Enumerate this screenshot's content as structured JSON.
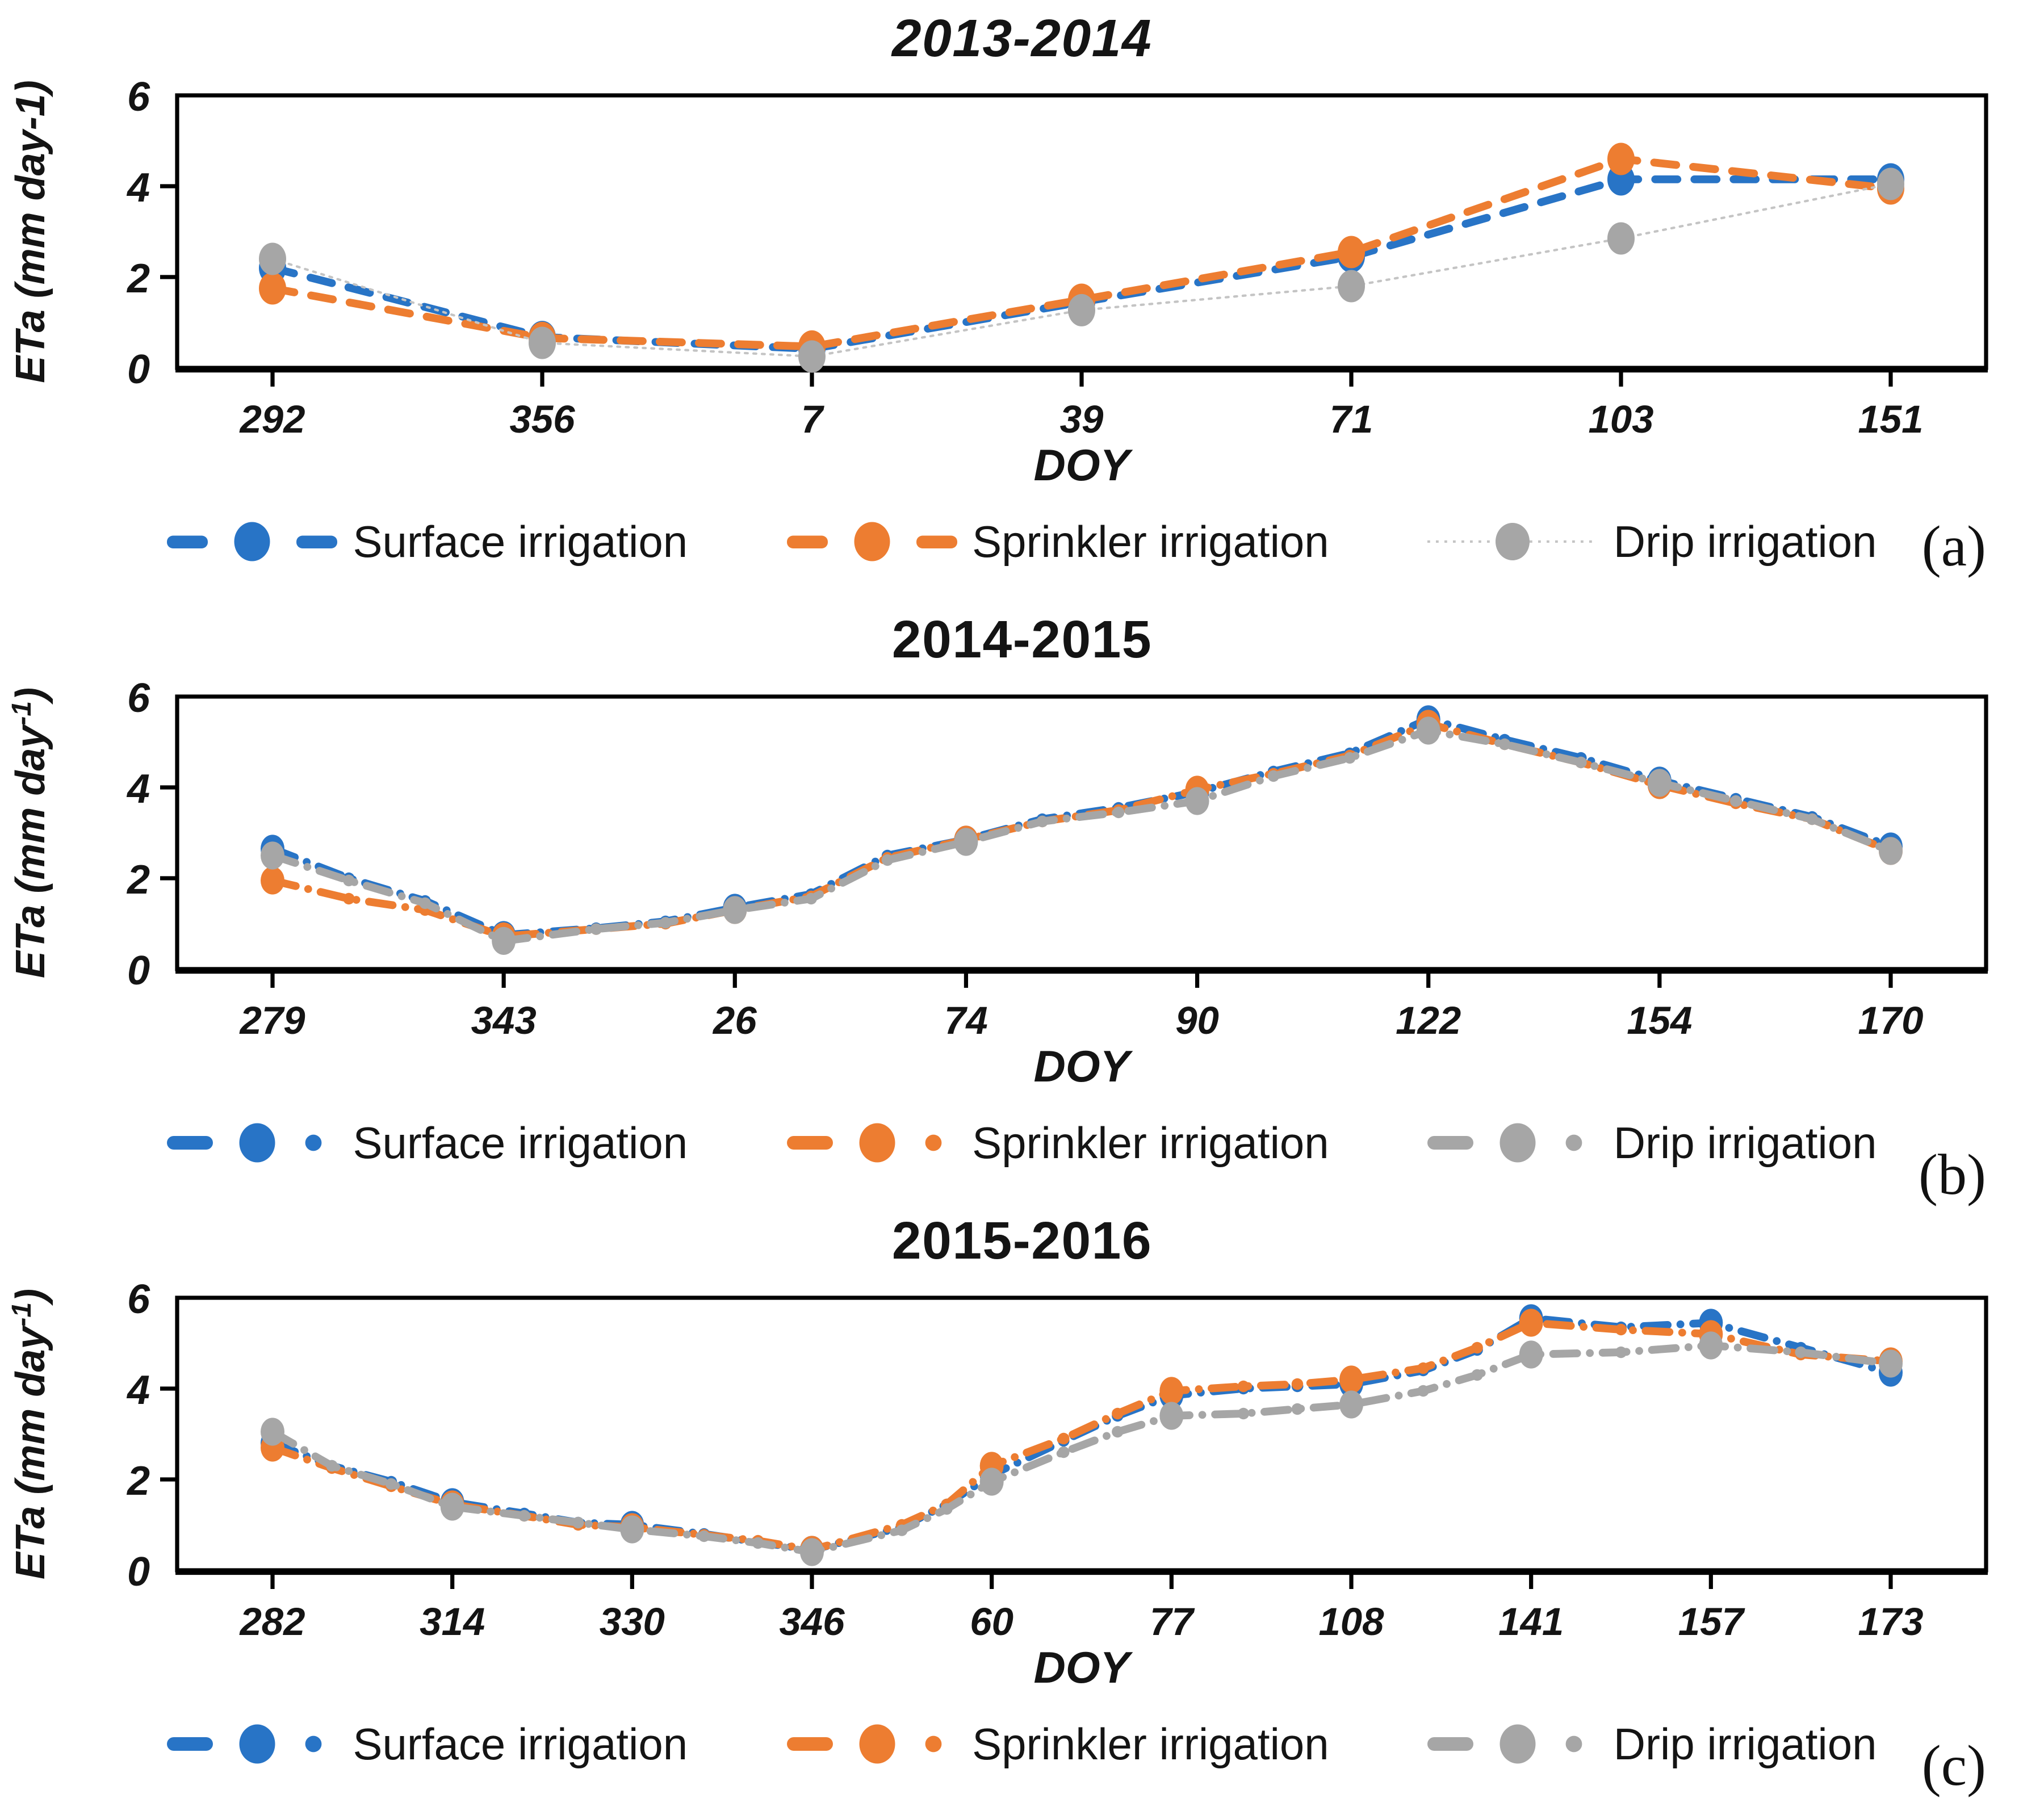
{
  "page": {
    "background": "#FFFFFF"
  },
  "colors": {
    "surface": "#2874C6",
    "sprinkler": "#ED7D31",
    "drip": "#A6A6A6",
    "drip_thin_line": "#C4C4C4",
    "axis": "#000000",
    "text": "#141414"
  },
  "chart_data": [
    {
      "id": "a",
      "type": "line",
      "title": "2013-2014",
      "title_italic": true,
      "panel_label": "(a)",
      "xlabel": "DOY",
      "ylabel_prefix": "ETa (mm day",
      "ylabel_exp": "-1",
      "ylabel_suffix": ")",
      "ylabel_exp_superscript": false,
      "ylim": [
        0,
        6
      ],
      "yticks": [
        0,
        2,
        4,
        6
      ],
      "grid": false,
      "legend_position": "bottom",
      "x": [
        0,
        1,
        2,
        3,
        4,
        5,
        6
      ],
      "x_labels": [
        "292",
        "356",
        "7",
        "39",
        "71",
        "103",
        "151"
      ],
      "series": [
        {
          "id": "surface",
          "name": "Surface irrigation",
          "color": "#2874C6",
          "style": "dash",
          "legend_style": "dash-circle-dash",
          "values": [
            2.2,
            0.68,
            0.42,
            1.45,
            2.45,
            4.15,
            4.15
          ]
        },
        {
          "id": "sprinkler",
          "name": "Sprinkler irrigation",
          "color": "#ED7D31",
          "style": "dash",
          "legend_style": "dash-circle-dash",
          "values": [
            1.75,
            0.66,
            0.47,
            1.5,
            2.55,
            4.6,
            3.95
          ]
        },
        {
          "id": "drip",
          "name": "Drip irrigation",
          "color": "#A6A6A6",
          "style": "thin-dot",
          "legend_style": "thinline-circle",
          "values": [
            2.4,
            0.55,
            0.25,
            1.27,
            1.8,
            2.85,
            4.05
          ]
        }
      ]
    },
    {
      "id": "b",
      "type": "line",
      "title": "2014-2015",
      "title_italic": false,
      "panel_label": "(b)",
      "xlabel": "DOY",
      "ylabel_prefix": "ETa (mm day",
      "ylabel_exp": "-1",
      "ylabel_suffix": ")",
      "ylabel_exp_superscript": true,
      "ylim": [
        0,
        6
      ],
      "yticks": [
        0,
        2,
        4,
        6
      ],
      "grid": false,
      "legend_position": "bottom",
      "x": [
        0,
        0.33,
        0.66,
        1,
        1.4,
        1.7,
        2,
        2.33,
        2.66,
        3,
        3.33,
        3.66,
        4,
        4.33,
        4.66,
        5,
        5.33,
        5.66,
        6,
        6.33,
        6.66,
        7
      ],
      "x_labels": [
        "279",
        "",
        "",
        "343",
        "",
        "",
        "26",
        "",
        "",
        "74",
        "",
        "",
        "90",
        "",
        "",
        "122",
        "",
        "",
        "154",
        "",
        "",
        "170"
      ],
      "series": [
        {
          "id": "surface",
          "name": "Surface irrigation",
          "color": "#2874C6",
          "style": "dash-dot",
          "legend_style": "dash-circle-dot",
          "values": [
            2.65,
            2.0,
            1.5,
            0.75,
            0.9,
            1.05,
            1.35,
            1.65,
            2.5,
            2.85,
            3.3,
            3.55,
            3.9,
            4.35,
            4.75,
            5.5,
            5.05,
            4.65,
            4.15,
            3.75,
            3.35,
            2.7
          ]
        },
        {
          "id": "sprinkler",
          "name": "Sprinkler irrigation",
          "color": "#ED7D31",
          "style": "dash-dot",
          "legend_style": "dash-circle-dot",
          "values": [
            1.95,
            1.55,
            1.3,
            0.72,
            0.88,
            1.0,
            1.3,
            1.6,
            2.45,
            2.85,
            3.25,
            3.5,
            3.95,
            4.3,
            4.7,
            5.4,
            4.95,
            4.55,
            4.05,
            3.65,
            3.3,
            2.6
          ]
        },
        {
          "id": "drip",
          "name": "Drip irrigation",
          "color": "#A6A6A6",
          "style": "dash-dot",
          "legend_style": "dash-circle-dot",
          "values": [
            2.5,
            1.95,
            1.45,
            0.62,
            0.88,
            1.02,
            1.3,
            1.55,
            2.4,
            2.8,
            3.25,
            3.45,
            3.7,
            4.25,
            4.65,
            5.25,
            4.95,
            4.55,
            4.1,
            3.7,
            3.3,
            2.6
          ]
        }
      ]
    },
    {
      "id": "c",
      "type": "line",
      "title": "2015-2016",
      "title_italic": false,
      "panel_label": "(c)",
      "xlabel": "DOY",
      "ylabel_prefix": "ETa (mm day",
      "ylabel_exp": "-1",
      "ylabel_suffix": ")",
      "ylabel_exp_superscript": true,
      "ylim": [
        0,
        6
      ],
      "yticks": [
        0,
        2,
        4,
        6
      ],
      "grid": false,
      "legend_position": "bottom",
      "x": [
        0,
        0.33,
        0.66,
        1,
        1.4,
        1.7,
        2,
        2.4,
        2.7,
        3,
        3.5,
        3.75,
        4,
        4.4,
        4.7,
        5,
        5.4,
        5.7,
        6,
        6.4,
        6.7,
        7,
        7.5,
        8,
        8.5,
        9
      ],
      "x_labels": [
        "282",
        "",
        "",
        "314",
        "",
        "",
        "330",
        "",
        "",
        "346",
        "",
        "",
        "60",
        "",
        "",
        "77",
        "",
        "",
        "108",
        "",
        "",
        "141",
        "",
        "157",
        "",
        "173"
      ],
      "series": [
        {
          "id": "surface",
          "name": "Surface irrigation",
          "color": "#2874C6",
          "style": "dash-dot",
          "legend_style": "dash-circle-dot",
          "values": [
            2.8,
            2.3,
            1.95,
            1.5,
            1.25,
            1.05,
            1.0,
            0.8,
            0.62,
            0.45,
            0.95,
            1.45,
            2.1,
            2.85,
            3.4,
            3.85,
            4.0,
            4.05,
            4.1,
            4.4,
            4.85,
            5.55,
            5.35,
            5.45,
            4.9,
            4.35
          ]
        },
        {
          "id": "sprinkler",
          "name": "Sprinkler irrigation",
          "color": "#ED7D31",
          "style": "dash-dot",
          "legend_style": "dash-circle-dot",
          "values": [
            2.7,
            2.25,
            1.85,
            1.45,
            1.2,
            1.0,
            0.95,
            0.78,
            0.65,
            0.45,
            1.0,
            1.45,
            2.3,
            2.9,
            3.45,
            3.95,
            4.05,
            4.1,
            4.2,
            4.45,
            4.9,
            5.45,
            5.3,
            5.2,
            4.75,
            4.6
          ]
        },
        {
          "id": "drip",
          "name": "Drip irrigation",
          "color": "#A6A6A6",
          "style": "dash-dot",
          "legend_style": "dash-circle-dot",
          "values": [
            3.05,
            2.3,
            1.9,
            1.4,
            1.2,
            1.05,
            0.9,
            0.75,
            0.6,
            0.4,
            0.88,
            1.35,
            1.95,
            2.6,
            3.05,
            3.4,
            3.45,
            3.55,
            3.65,
            3.95,
            4.3,
            4.75,
            4.8,
            4.95,
            4.8,
            4.55
          ]
        }
      ]
    }
  ]
}
